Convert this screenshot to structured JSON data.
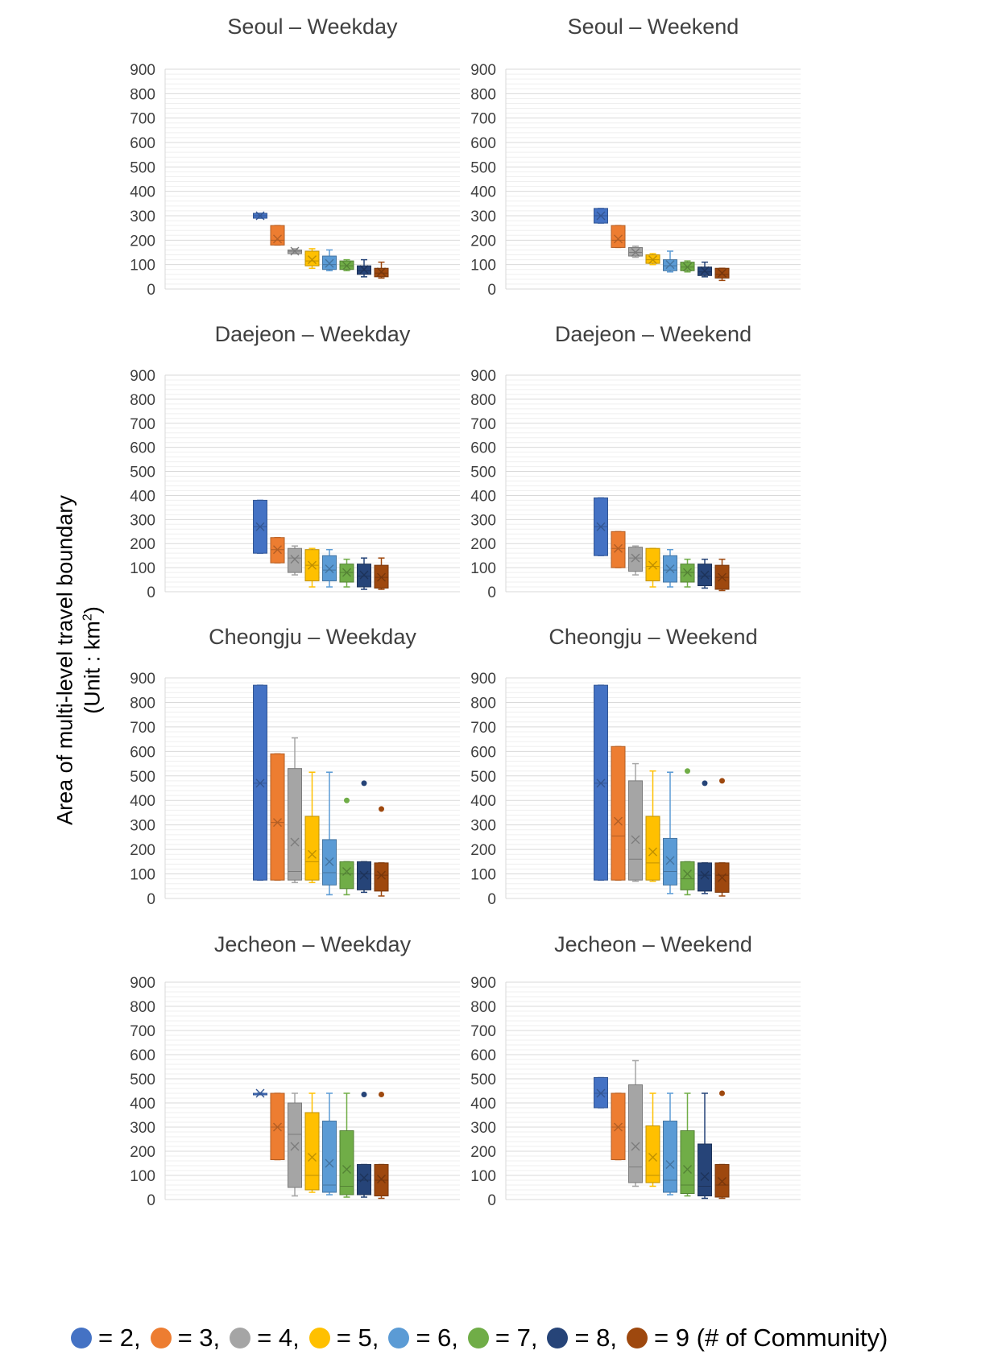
{
  "figure": {
    "ylabel_line1": "Area of multi-level travel boundary",
    "ylabel_line2": "(Unit : km",
    "ylabel_sup": "2",
    "ylabel_close": ")"
  },
  "legend": {
    "items": [
      {
        "label": "= 2,",
        "color": "#4472C4"
      },
      {
        "label": "= 3,",
        "color": "#ED7D31"
      },
      {
        "label": "= 4,",
        "color": "#A5A5A5"
      },
      {
        "label": "= 5,",
        "color": "#FFC000"
      },
      {
        "label": "= 6,",
        "color": "#5B9BD5"
      },
      {
        "label": "= 7,",
        "color": "#70AD47"
      },
      {
        "label": "= 8,",
        "color": "#264478"
      },
      {
        "label": "= 9 (# of Community)",
        "color": "#9E480E"
      }
    ]
  },
  "chart_data": [
    {
      "type": "box",
      "title": "Seoul – Weekday",
      "ylim": [
        0,
        900
      ],
      "yticks": [
        0,
        100,
        200,
        300,
        400,
        500,
        600,
        700,
        800,
        900
      ],
      "grid": true,
      "series": [
        {
          "name": "2",
          "min": 290,
          "q1": 290,
          "median": 300,
          "q3": 310,
          "max": 310,
          "mean": 300,
          "outliers": []
        },
        {
          "name": "3",
          "min": 180,
          "q1": 180,
          "median": 200,
          "q3": 260,
          "max": 260,
          "mean": 205,
          "outliers": []
        },
        {
          "name": "4",
          "min": 145,
          "q1": 145,
          "median": 155,
          "q3": 160,
          "max": 165,
          "mean": 155,
          "outliers": []
        },
        {
          "name": "5",
          "min": 85,
          "q1": 95,
          "median": 115,
          "q3": 155,
          "max": 165,
          "mean": 120,
          "outliers": []
        },
        {
          "name": "6",
          "min": 75,
          "q1": 80,
          "median": 100,
          "q3": 135,
          "max": 160,
          "mean": 105,
          "outliers": []
        },
        {
          "name": "7",
          "min": 75,
          "q1": 80,
          "median": 95,
          "q3": 115,
          "max": 120,
          "mean": 95,
          "outliers": []
        },
        {
          "name": "8",
          "min": 50,
          "q1": 60,
          "median": 75,
          "q3": 95,
          "max": 120,
          "mean": 80,
          "outliers": []
        },
        {
          "name": "9",
          "min": 45,
          "q1": 50,
          "median": 65,
          "q3": 85,
          "max": 110,
          "mean": 70,
          "outliers": []
        }
      ]
    },
    {
      "type": "box",
      "title": "Seoul – Weekend",
      "ylim": [
        0,
        900
      ],
      "yticks": [
        0,
        100,
        200,
        300,
        400,
        500,
        600,
        700,
        800,
        900
      ],
      "grid": true,
      "series": [
        {
          "name": "2",
          "min": 270,
          "q1": 270,
          "median": 300,
          "q3": 330,
          "max": 330,
          "mean": 300,
          "outliers": []
        },
        {
          "name": "3",
          "min": 170,
          "q1": 170,
          "median": 200,
          "q3": 260,
          "max": 260,
          "mean": 205,
          "outliers": []
        },
        {
          "name": "4",
          "min": 130,
          "q1": 135,
          "median": 150,
          "q3": 170,
          "max": 175,
          "mean": 150,
          "outliers": []
        },
        {
          "name": "5",
          "min": 100,
          "q1": 105,
          "median": 120,
          "q3": 140,
          "max": 145,
          "mean": 120,
          "outliers": []
        },
        {
          "name": "6",
          "min": 70,
          "q1": 75,
          "median": 95,
          "q3": 120,
          "max": 155,
          "mean": 100,
          "outliers": []
        },
        {
          "name": "7",
          "min": 70,
          "q1": 75,
          "median": 90,
          "q3": 110,
          "max": 115,
          "mean": 90,
          "outliers": []
        },
        {
          "name": "8",
          "min": 50,
          "q1": 55,
          "median": 70,
          "q3": 90,
          "max": 110,
          "mean": 75,
          "outliers": []
        },
        {
          "name": "9",
          "min": 35,
          "q1": 45,
          "median": 60,
          "q3": 85,
          "max": 85,
          "mean": 65,
          "outliers": []
        }
      ]
    },
    {
      "type": "box",
      "title": "Daejeon – Weekday",
      "ylim": [
        0,
        900
      ],
      "yticks": [
        0,
        100,
        200,
        300,
        400,
        500,
        600,
        700,
        800,
        900
      ],
      "grid": true,
      "series": [
        {
          "name": "2",
          "min": 160,
          "q1": 160,
          "median": 270,
          "q3": 380,
          "max": 380,
          "mean": 270,
          "outliers": []
        },
        {
          "name": "3",
          "min": 120,
          "q1": 120,
          "median": 175,
          "q3": 225,
          "max": 225,
          "mean": 175,
          "outliers": []
        },
        {
          "name": "4",
          "min": 70,
          "q1": 80,
          "median": 140,
          "q3": 180,
          "max": 190,
          "mean": 135,
          "outliers": []
        },
        {
          "name": "5",
          "min": 20,
          "q1": 45,
          "median": 110,
          "q3": 175,
          "max": 180,
          "mean": 110,
          "outliers": []
        },
        {
          "name": "6",
          "min": 20,
          "q1": 45,
          "median": 90,
          "q3": 150,
          "max": 175,
          "mean": 95,
          "outliers": []
        },
        {
          "name": "7",
          "min": 20,
          "q1": 40,
          "median": 80,
          "q3": 115,
          "max": 135,
          "mean": 80,
          "outliers": []
        },
        {
          "name": "8",
          "min": 10,
          "q1": 20,
          "median": 65,
          "q3": 115,
          "max": 140,
          "mean": 70,
          "outliers": []
        },
        {
          "name": "9",
          "min": 10,
          "q1": 15,
          "median": 60,
          "q3": 110,
          "max": 140,
          "mean": 60,
          "outliers": []
        }
      ]
    },
    {
      "type": "box",
      "title": "Daejeon – Weekend",
      "ylim": [
        0,
        900
      ],
      "yticks": [
        0,
        100,
        200,
        300,
        400,
        500,
        600,
        700,
        800,
        900
      ],
      "grid": true,
      "series": [
        {
          "name": "2",
          "min": 150,
          "q1": 150,
          "median": 270,
          "q3": 390,
          "max": 390,
          "mean": 270,
          "outliers": []
        },
        {
          "name": "3",
          "min": 100,
          "q1": 100,
          "median": 180,
          "q3": 250,
          "max": 250,
          "mean": 180,
          "outliers": []
        },
        {
          "name": "4",
          "min": 70,
          "q1": 85,
          "median": 140,
          "q3": 185,
          "max": 190,
          "mean": 140,
          "outliers": []
        },
        {
          "name": "5",
          "min": 20,
          "q1": 45,
          "median": 105,
          "q3": 180,
          "max": 180,
          "mean": 110,
          "outliers": []
        },
        {
          "name": "6",
          "min": 20,
          "q1": 40,
          "median": 90,
          "q3": 150,
          "max": 175,
          "mean": 95,
          "outliers": []
        },
        {
          "name": "7",
          "min": 20,
          "q1": 40,
          "median": 80,
          "q3": 115,
          "max": 135,
          "mean": 80,
          "outliers": []
        },
        {
          "name": "8",
          "min": 15,
          "q1": 25,
          "median": 65,
          "q3": 115,
          "max": 135,
          "mean": 70,
          "outliers": []
        },
        {
          "name": "9",
          "min": 5,
          "q1": 10,
          "median": 60,
          "q3": 110,
          "max": 135,
          "mean": 60,
          "outliers": []
        }
      ]
    },
    {
      "type": "box",
      "title": "Cheongju – Weekday",
      "ylim": [
        0,
        900
      ],
      "yticks": [
        0,
        100,
        200,
        300,
        400,
        500,
        600,
        700,
        800,
        900
      ],
      "grid": true,
      "series": [
        {
          "name": "2",
          "min": 75,
          "q1": 75,
          "median": 470,
          "q3": 870,
          "max": 870,
          "mean": 470,
          "outliers": []
        },
        {
          "name": "3",
          "min": 75,
          "q1": 75,
          "median": 310,
          "q3": 590,
          "max": 590,
          "mean": 310,
          "outliers": []
        },
        {
          "name": "4",
          "min": 65,
          "q1": 75,
          "median": 110,
          "q3": 530,
          "max": 655,
          "mean": 230,
          "outliers": []
        },
        {
          "name": "5",
          "min": 65,
          "q1": 75,
          "median": 150,
          "q3": 335,
          "max": 515,
          "mean": 180,
          "outliers": []
        },
        {
          "name": "6",
          "min": 15,
          "q1": 55,
          "median": 105,
          "q3": 240,
          "max": 515,
          "mean": 150,
          "outliers": []
        },
        {
          "name": "7",
          "min": 15,
          "q1": 40,
          "median": 100,
          "q3": 150,
          "max": 150,
          "mean": 110,
          "outliers": [
            400
          ]
        },
        {
          "name": "8",
          "min": 25,
          "q1": 35,
          "median": 100,
          "q3": 150,
          "max": 150,
          "mean": 95,
          "outliers": [
            470
          ]
        },
        {
          "name": "9",
          "min": 10,
          "q1": 30,
          "median": 95,
          "q3": 145,
          "max": 145,
          "mean": 95,
          "outliers": [
            365
          ]
        }
      ]
    },
    {
      "type": "box",
      "title": "Cheongju – Weekend",
      "ylim": [
        0,
        900
      ],
      "yticks": [
        0,
        100,
        200,
        300,
        400,
        500,
        600,
        700,
        800,
        900
      ],
      "grid": true,
      "series": [
        {
          "name": "2",
          "min": 75,
          "q1": 75,
          "median": 470,
          "q3": 870,
          "max": 870,
          "mean": 470,
          "outliers": []
        },
        {
          "name": "3",
          "min": 75,
          "q1": 75,
          "median": 255,
          "q3": 620,
          "max": 620,
          "mean": 315,
          "outliers": []
        },
        {
          "name": "4",
          "min": 70,
          "q1": 75,
          "median": 160,
          "q3": 480,
          "max": 550,
          "mean": 240,
          "outliers": []
        },
        {
          "name": "5",
          "min": 70,
          "q1": 75,
          "median": 145,
          "q3": 335,
          "max": 520,
          "mean": 190,
          "outliers": []
        },
        {
          "name": "6",
          "min": 20,
          "q1": 55,
          "median": 110,
          "q3": 245,
          "max": 515,
          "mean": 155,
          "outliers": []
        },
        {
          "name": "7",
          "min": 15,
          "q1": 35,
          "median": 80,
          "q3": 150,
          "max": 150,
          "mean": 100,
          "outliers": [
            520
          ]
        },
        {
          "name": "8",
          "min": 20,
          "q1": 30,
          "median": 95,
          "q3": 145,
          "max": 145,
          "mean": 95,
          "outliers": [
            470
          ]
        },
        {
          "name": "9",
          "min": 10,
          "q1": 25,
          "median": 95,
          "q3": 145,
          "max": 145,
          "mean": 85,
          "outliers": [
            480
          ]
        }
      ]
    },
    {
      "type": "box",
      "title": "Jecheon – Weekday",
      "ylim": [
        0,
        900
      ],
      "yticks": [
        0,
        100,
        200,
        300,
        400,
        500,
        600,
        700,
        800,
        900
      ],
      "grid": true,
      "series": [
        {
          "name": "2",
          "min": 440,
          "q1": 440,
          "median": 440,
          "q3": 440,
          "max": 440,
          "mean": 440,
          "outliers": []
        },
        {
          "name": "3",
          "min": 165,
          "q1": 165,
          "median": 300,
          "q3": 440,
          "max": 440,
          "mean": 300,
          "outliers": []
        },
        {
          "name": "4",
          "min": 15,
          "q1": 50,
          "median": 270,
          "q3": 400,
          "max": 440,
          "mean": 220,
          "outliers": []
        },
        {
          "name": "5",
          "min": 30,
          "q1": 40,
          "median": 100,
          "q3": 360,
          "max": 440,
          "mean": 175,
          "outliers": []
        },
        {
          "name": "6",
          "min": 20,
          "q1": 30,
          "median": 60,
          "q3": 325,
          "max": 440,
          "mean": 150,
          "outliers": []
        },
        {
          "name": "7",
          "min": 10,
          "q1": 20,
          "median": 55,
          "q3": 285,
          "max": 440,
          "mean": 125,
          "outliers": []
        },
        {
          "name": "8",
          "min": 10,
          "q1": 20,
          "median": 80,
          "q3": 145,
          "max": 145,
          "mean": 90,
          "outliers": [
            435
          ]
        },
        {
          "name": "9",
          "min": 5,
          "q1": 15,
          "median": 80,
          "q3": 145,
          "max": 145,
          "mean": 85,
          "outliers": [
            435
          ]
        }
      ]
    },
    {
      "type": "box",
      "title": "Jecheon – Weekend",
      "ylim": [
        0,
        900
      ],
      "yticks": [
        0,
        100,
        200,
        300,
        400,
        500,
        600,
        700,
        800,
        900
      ],
      "grid": true,
      "series": [
        {
          "name": "2",
          "min": 380,
          "q1": 380,
          "median": 440,
          "q3": 505,
          "max": 505,
          "mean": 440,
          "outliers": []
        },
        {
          "name": "3",
          "min": 165,
          "q1": 165,
          "median": 300,
          "q3": 440,
          "max": 440,
          "mean": 300,
          "outliers": []
        },
        {
          "name": "4",
          "min": 55,
          "q1": 70,
          "median": 135,
          "q3": 475,
          "max": 575,
          "mean": 220,
          "outliers": []
        },
        {
          "name": "5",
          "min": 55,
          "q1": 70,
          "median": 100,
          "q3": 305,
          "max": 440,
          "mean": 175,
          "outliers": []
        },
        {
          "name": "6",
          "min": 20,
          "q1": 30,
          "median": 80,
          "q3": 325,
          "max": 440,
          "mean": 145,
          "outliers": []
        },
        {
          "name": "7",
          "min": 15,
          "q1": 25,
          "median": 60,
          "q3": 285,
          "max": 440,
          "mean": 125,
          "outliers": []
        },
        {
          "name": "8",
          "min": 5,
          "q1": 15,
          "median": 55,
          "q3": 230,
          "max": 440,
          "mean": 95,
          "outliers": []
        },
        {
          "name": "9",
          "min": 5,
          "q1": 10,
          "median": 60,
          "q3": 145,
          "max": 145,
          "mean": 75,
          "outliers": [
            440
          ]
        }
      ]
    }
  ]
}
